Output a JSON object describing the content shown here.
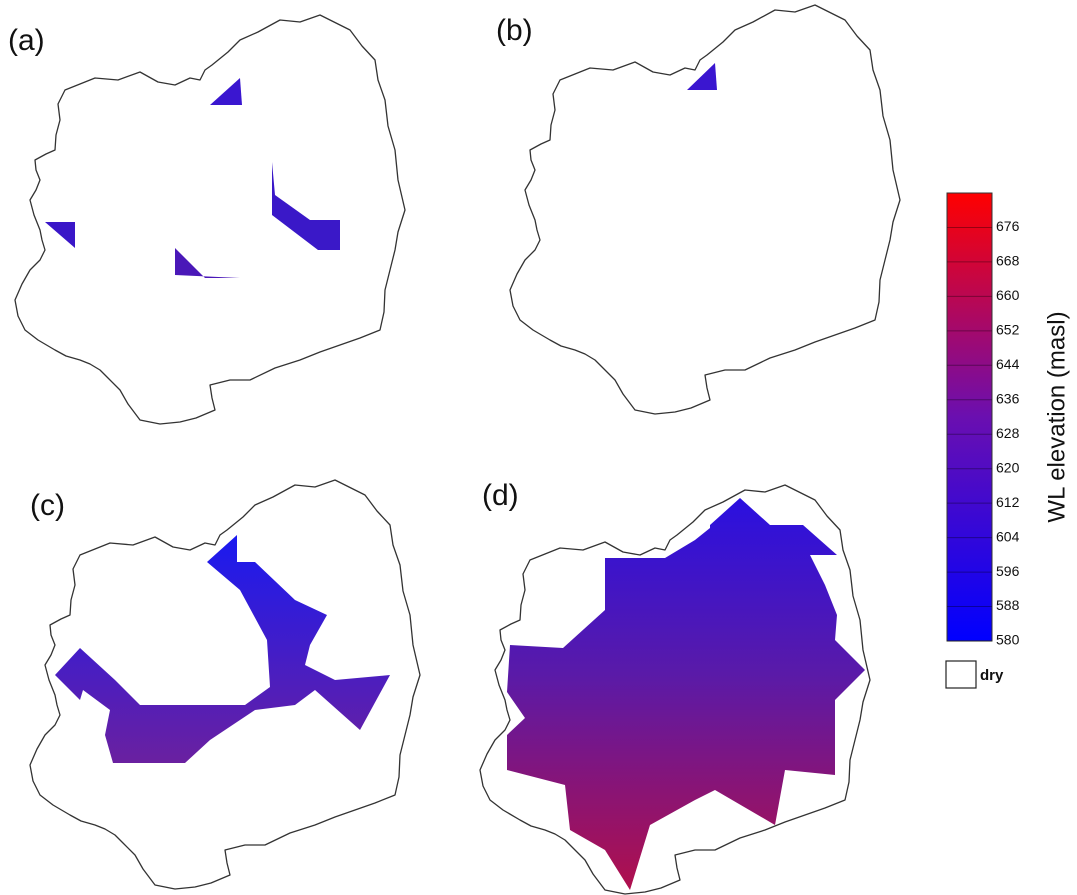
{
  "panels": [
    "(a)",
    "(b)",
    "(c)",
    "(d)"
  ],
  "colorbar": {
    "title": "WL elevation (masl)",
    "range": [
      580,
      684
    ],
    "ticks": [
      580,
      588,
      596,
      604,
      612,
      620,
      628,
      636,
      644,
      652,
      660,
      668,
      676
    ],
    "dry_label": "dry"
  }
}
